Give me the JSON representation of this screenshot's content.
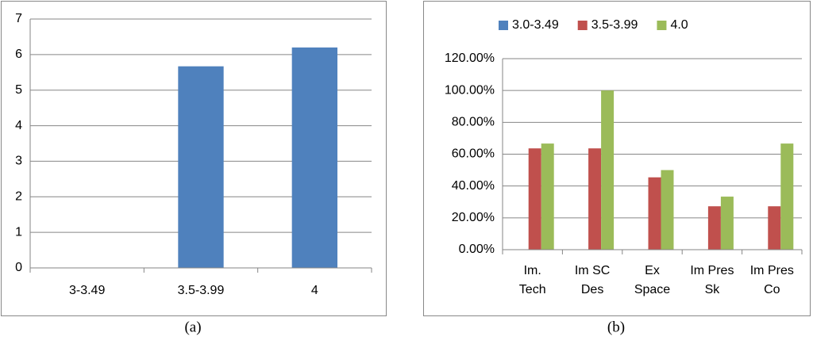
{
  "chart_data": [
    {
      "type": "bar",
      "caption": "(a)",
      "categories": [
        "3-3.49",
        "3.5-3.99",
        "4"
      ],
      "values": [
        0,
        5.67,
        6.2
      ],
      "color": "#4f81bd",
      "ylim": [
        0,
        7
      ],
      "yticks": [
        0,
        1,
        2,
        3,
        4,
        5,
        6,
        7
      ],
      "grid": true
    },
    {
      "type": "grouped-bar",
      "caption": "(b)",
      "categories": [
        [
          "Im.",
          "Tech"
        ],
        [
          "Im SC",
          "Des"
        ],
        [
          "Ex",
          "Space"
        ],
        [
          "Im Pres",
          "Sk"
        ],
        [
          "Im Pres",
          "Co"
        ]
      ],
      "series": [
        {
          "name": "3.0-3.49",
          "color": "#4f81bd",
          "values": [
            0,
            0,
            0,
            0,
            0
          ]
        },
        {
          "name": "3.5-3.99",
          "color": "#c0504d",
          "values": [
            63.64,
            63.64,
            45.45,
            27.27,
            27.27
          ]
        },
        {
          "name": "4.0",
          "color": "#9bbb59",
          "values": [
            66.67,
            100,
            50,
            33.33,
            66.67
          ]
        }
      ],
      "ylim": [
        0,
        120
      ],
      "yticks": [
        {
          "value": 0,
          "label": "0.00%"
        },
        {
          "value": 20,
          "label": "20.00%"
        },
        {
          "value": 40,
          "label": "40.00%"
        },
        {
          "value": 60,
          "label": "60.00%"
        },
        {
          "value": 80,
          "label": "80.00%"
        },
        {
          "value": 100,
          "label": "100.00%"
        },
        {
          "value": 120,
          "label": "120.00%"
        }
      ],
      "grid": true,
      "legend": "top"
    }
  ]
}
